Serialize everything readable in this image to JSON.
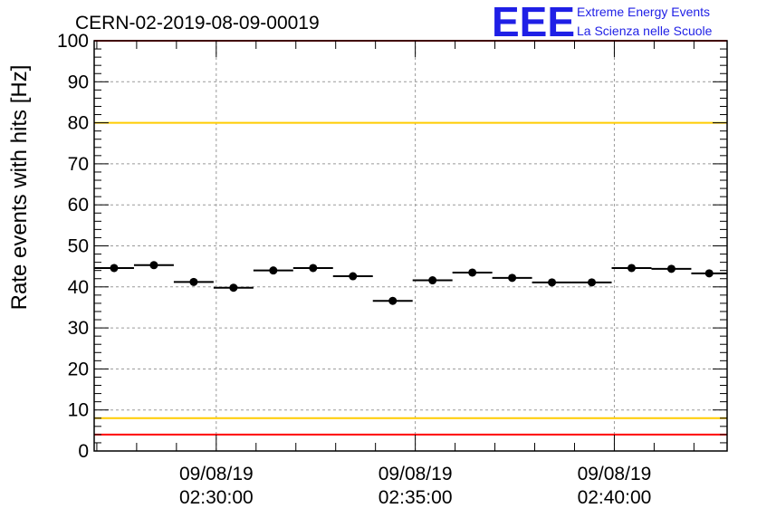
{
  "logo": {
    "mark": "EEE",
    "line1": "Extreme Energy Events",
    "line2": "La Scienza nelle Scuole",
    "color": "#1f1fe6"
  },
  "chart_data": {
    "type": "scatter",
    "title": "CERN-02-2019-08-09-00019",
    "ylabel": "Rate events with hits [Hz]",
    "xlabel": "",
    "ylim": [
      0,
      100
    ],
    "yticks": [
      0,
      10,
      20,
      30,
      40,
      50,
      60,
      70,
      80,
      90,
      100
    ],
    "xlim": [
      "02:26:56",
      "02:42:50"
    ],
    "xticks": [
      {
        "t": "02:30:00",
        "date": "09/08/19",
        "time": "02:30:00"
      },
      {
        "t": "02:35:00",
        "date": "09/08/19",
        "time": "02:35:00"
      },
      {
        "t": "02:40:00",
        "date": "09/08/19",
        "time": "02:40:00"
      }
    ],
    "grid": true,
    "series": [
      {
        "x_start": [
          "02:26:56",
          "02:27:56",
          "02:28:56",
          "02:29:56",
          "02:30:56",
          "02:31:56",
          "02:32:56",
          "02:33:56",
          "02:34:56",
          "02:35:56",
          "02:36:56",
          "02:37:56",
          "02:38:56",
          "02:39:56",
          "02:40:56",
          "02:41:56"
        ],
        "x_end": [
          "02:27:56",
          "02:28:56",
          "02:29:56",
          "02:30:56",
          "02:31:56",
          "02:32:56",
          "02:33:56",
          "02:34:56",
          "02:35:56",
          "02:36:56",
          "02:37:56",
          "02:38:56",
          "02:39:56",
          "02:40:56",
          "02:41:56",
          "02:42:50"
        ],
        "values": [
          44.6,
          45.3,
          41.2,
          39.8,
          44.0,
          44.6,
          42.6,
          36.6,
          41.6,
          43.5,
          42.2,
          41.1,
          41.1,
          44.6,
          44.4,
          43.3
        ]
      }
    ],
    "reference_lines": [
      {
        "y": 100,
        "color": "#ff0000"
      },
      {
        "y": 80,
        "color": "#ffcc00"
      },
      {
        "y": 8,
        "color": "#ffcc00"
      },
      {
        "y": 4,
        "color": "#ff0000"
      }
    ]
  }
}
